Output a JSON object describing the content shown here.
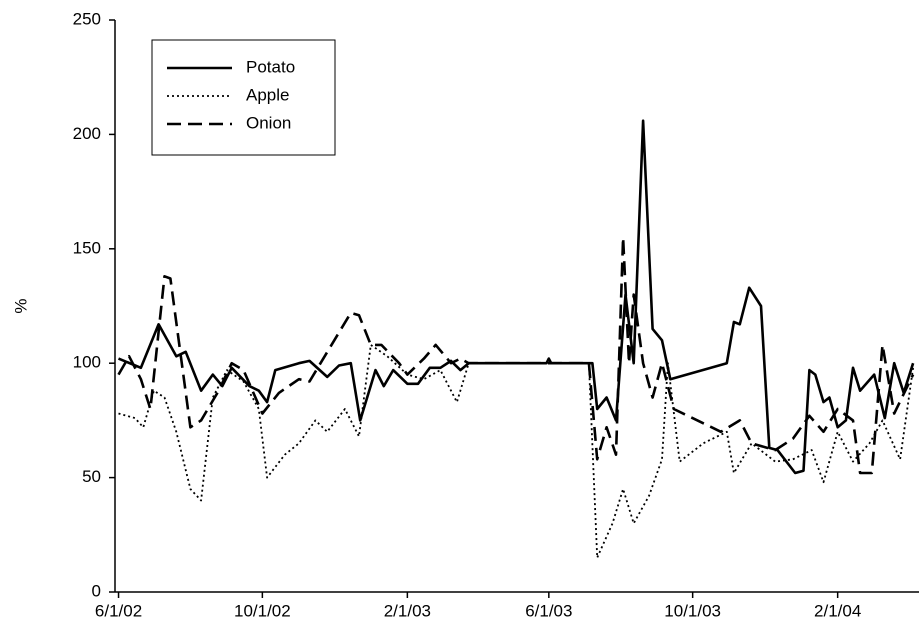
{
  "chart_data": {
    "type": "line",
    "ylabel": "%",
    "ylim": [
      0,
      250
    ],
    "yticks": [
      0,
      50,
      100,
      150,
      200,
      250
    ],
    "xlim": [
      "2002-05-29",
      "2004-04-10"
    ],
    "xticks": [
      {
        "value": "2002-06-01",
        "label": "6/1/02"
      },
      {
        "value": "2002-10-01",
        "label": "10/1/02"
      },
      {
        "value": "2003-02-01",
        "label": "2/1/03"
      },
      {
        "value": "2003-06-01",
        "label": "6/1/03"
      },
      {
        "value": "2003-10-01",
        "label": "10/1/03"
      },
      {
        "value": "2004-02-01",
        "label": "2/1/04"
      }
    ],
    "legend": "upper left",
    "series": [
      {
        "name": "Potato",
        "color": "#000000",
        "dash": "solid",
        "x": [
          "2002-06-01",
          "2002-06-20",
          "2002-07-05",
          "2002-07-20",
          "2002-07-28",
          "2002-08-10",
          "2002-08-20",
          "2002-08-28",
          "2002-09-05",
          "2002-09-20",
          "2002-09-28",
          "2002-10-05",
          "2002-10-12",
          "2002-11-01",
          "2002-11-10",
          "2002-11-25",
          "2002-12-05",
          "2002-12-15",
          "2002-12-23",
          "2003-01-05",
          "2003-01-12",
          "2003-01-20",
          "2003-02-01",
          "2003-02-10",
          "2003-02-20",
          "2003-03-01",
          "2003-03-10",
          "2003-03-18",
          "2003-03-25",
          "2003-05-30",
          "2003-06-01",
          "2003-06-03",
          "2003-07-08",
          "2003-07-12",
          "2003-07-20",
          "2003-07-28",
          "2003-08-05",
          "2003-08-12",
          "2003-08-20",
          "2003-08-28",
          "2003-09-05",
          "2003-09-12",
          "2003-10-30",
          "2003-11-05",
          "2003-11-10",
          "2003-11-18",
          "2003-11-28",
          "2003-12-05",
          "2003-12-12",
          "2003-12-27",
          "2004-01-03",
          "2004-01-08",
          "2004-01-13",
          "2004-01-20",
          "2004-01-25",
          "2004-02-01",
          "2004-02-08",
          "2004-02-14",
          "2004-02-20",
          "2004-03-03",
          "2004-03-12",
          "2004-03-20",
          "2004-03-28",
          "2004-04-05"
        ],
        "values": [
          102,
          98,
          117,
          103,
          105,
          88,
          95,
          90,
          98,
          90,
          88,
          83,
          97,
          100,
          101,
          94,
          99,
          100,
          75,
          97,
          90,
          97,
          91,
          91,
          98,
          98,
          101,
          97,
          100,
          100,
          102,
          100,
          100,
          80,
          85,
          75,
          130,
          100,
          206,
          115,
          110,
          93,
          100,
          118,
          117,
          133,
          125,
          63,
          62,
          52,
          53,
          97,
          95,
          83,
          85,
          72,
          75,
          98,
          88,
          95,
          76,
          100,
          87,
          100
        ]
      },
      {
        "name": "Apple",
        "color": "#000000",
        "dash": "dotted",
        "x": [
          "2002-06-01",
          "2002-06-15",
          "2002-06-22",
          "2002-07-01",
          "2002-07-10",
          "2002-07-20",
          "2002-08-01",
          "2002-08-10",
          "2002-08-20",
          "2002-09-01",
          "2002-09-15",
          "2002-09-28",
          "2002-10-05",
          "2002-10-20",
          "2002-11-01",
          "2002-11-15",
          "2002-11-25",
          "2002-12-10",
          "2002-12-22",
          "2003-01-01",
          "2003-01-15",
          "2003-02-01",
          "2003-02-15",
          "2003-03-01",
          "2003-03-15",
          "2003-03-25",
          "2003-07-05",
          "2003-07-12",
          "2003-07-25",
          "2003-08-03",
          "2003-08-12",
          "2003-08-25",
          "2003-09-05",
          "2003-09-10",
          "2003-09-20",
          "2003-10-10",
          "2003-10-30",
          "2003-11-05",
          "2003-11-20",
          "2003-12-10",
          "2003-12-25",
          "2004-01-10",
          "2004-01-20",
          "2004-02-01",
          "2004-02-14",
          "2004-02-28",
          "2004-03-10",
          "2004-03-25",
          "2004-04-05"
        ],
        "values": [
          78,
          76,
          72,
          88,
          85,
          70,
          45,
          40,
          85,
          97,
          92,
          80,
          50,
          60,
          65,
          75,
          70,
          80,
          68,
          108,
          103,
          95,
          93,
          97,
          83,
          100,
          100,
          15,
          30,
          45,
          30,
          42,
          58,
          100,
          57,
          65,
          70,
          52,
          65,
          57,
          58,
          62,
          48,
          70,
          57,
          65,
          75,
          58,
          98
        ]
      },
      {
        "name": "Onion",
        "color": "#000000",
        "dash": "dashed",
        "x": [
          "2002-06-01",
          "2002-06-10",
          "2002-06-20",
          "2002-06-28",
          "2002-07-10",
          "2002-07-15",
          "2002-08-01",
          "2002-08-10",
          "2002-08-25",
          "2002-09-05",
          "2002-09-15",
          "2002-10-01",
          "2002-10-15",
          "2002-11-01",
          "2002-11-10",
          "2002-12-01",
          "2002-12-15",
          "2002-12-22",
          "2003-01-01",
          "2003-01-10",
          "2003-01-25",
          "2003-02-01",
          "2003-02-15",
          "2003-02-25",
          "2003-03-10",
          "2003-03-18",
          "2003-03-25",
          "2003-07-05",
          "2003-07-12",
          "2003-07-20",
          "2003-07-28",
          "2003-08-03",
          "2003-08-08",
          "2003-08-12",
          "2003-08-20",
          "2003-08-28",
          "2003-09-05",
          "2003-09-15",
          "2003-10-25",
          "2003-11-10",
          "2003-11-20",
          "2003-12-10",
          "2003-12-25",
          "2004-01-08",
          "2004-01-20",
          "2004-02-01",
          "2004-02-14",
          "2004-02-20",
          "2004-03-01",
          "2004-03-10",
          "2004-03-20",
          "2004-04-05"
        ],
        "values": [
          95,
          103,
          93,
          80,
          138,
          137,
          72,
          75,
          88,
          100,
          97,
          78,
          87,
          93,
          92,
          110,
          122,
          121,
          108,
          108,
          100,
          95,
          102,
          108,
          100,
          102,
          100,
          100,
          58,
          72,
          60,
          155,
          100,
          130,
          100,
          85,
          100,
          80,
          70,
          75,
          65,
          62,
          67,
          77,
          70,
          80,
          75,
          52,
          52,
          108,
          78,
          95
        ]
      }
    ]
  }
}
